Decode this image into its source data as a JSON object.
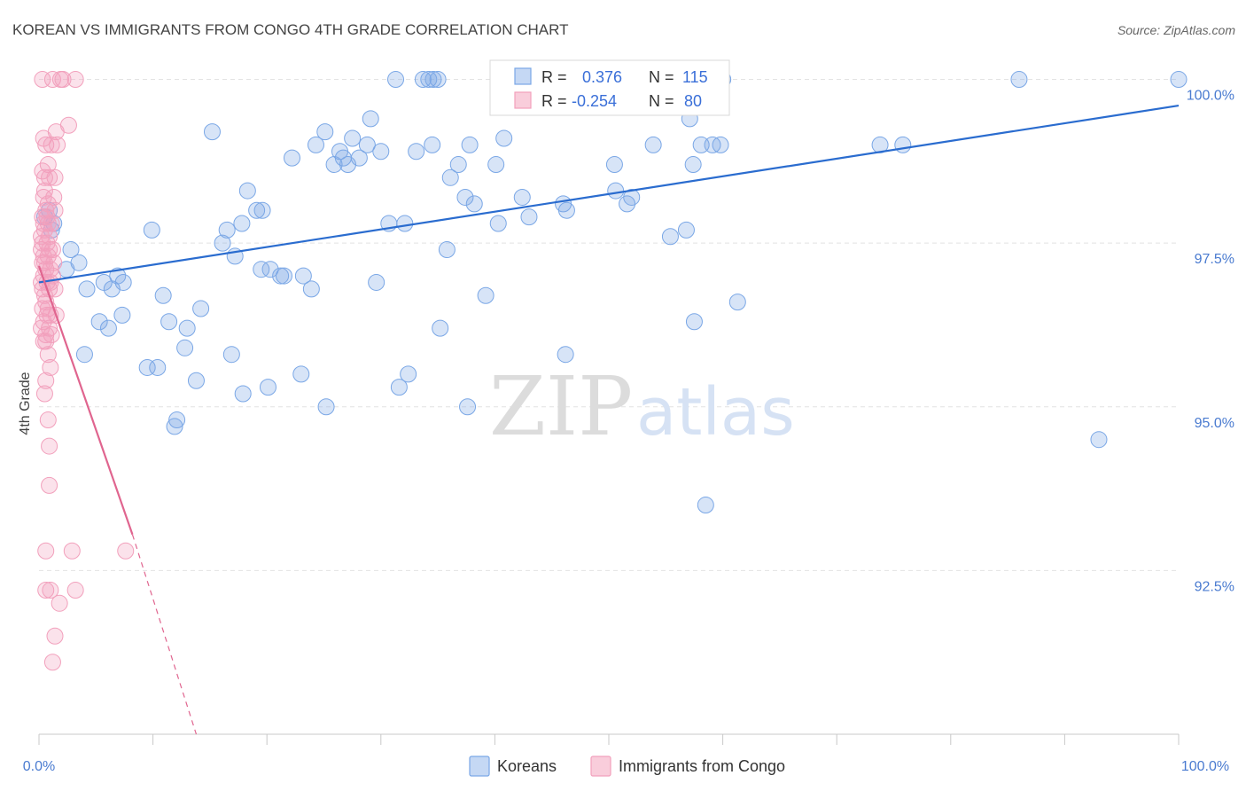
{
  "chart_data": {
    "type": "scatter",
    "title": "KOREAN VS IMMIGRANTS FROM CONGO 4TH GRADE CORRELATION CHART",
    "source": "Source: ZipAtlas.com",
    "ylabel": "4th Grade",
    "xlabel": "",
    "xlim": [
      0,
      100
    ],
    "ylim": [
      90.0,
      100.4
    ],
    "x_tick_labels": [
      "0.0%",
      "100.0%"
    ],
    "y_ticks": [
      {
        "value": 100.0,
        "label": "100.0%"
      },
      {
        "value": 97.5,
        "label": "97.5%"
      },
      {
        "value": 95.0,
        "label": "95.0%"
      },
      {
        "value": 92.5,
        "label": "92.5%"
      }
    ],
    "grid": true,
    "legend_position": "top-center",
    "watermark": {
      "zip": "ZIP",
      "atlas": "atlas"
    },
    "series": [
      {
        "name": "Koreans",
        "color": "#7aa7e6",
        "line_color": "#2a6ccf",
        "r_label": "R =",
        "r_value": "0.376",
        "n_label": "N =",
        "n_value": "115",
        "trend": {
          "x0": 0,
          "y0": 96.9,
          "x1": 100,
          "y1": 99.6
        },
        "points": [
          [
            0.5,
            97.9
          ],
          [
            1.1,
            97.7
          ],
          [
            0.9,
            98.0
          ],
          [
            1.3,
            97.8
          ],
          [
            2.8,
            97.4
          ],
          [
            2.4,
            97.1
          ],
          [
            3.5,
            97.2
          ],
          [
            4.2,
            96.8
          ],
          [
            5.7,
            96.9
          ],
          [
            6.4,
            96.8
          ],
          [
            7.4,
            96.9
          ],
          [
            6.9,
            97.0
          ],
          [
            5.3,
            96.3
          ],
          [
            6.1,
            96.2
          ],
          [
            7.3,
            96.4
          ],
          [
            4.0,
            95.8
          ],
          [
            9.9,
            97.7
          ],
          [
            10.9,
            96.7
          ],
          [
            11.4,
            96.3
          ],
          [
            13.0,
            96.2
          ],
          [
            12.8,
            95.9
          ],
          [
            14.2,
            96.5
          ],
          [
            9.5,
            95.6
          ],
          [
            10.4,
            95.6
          ],
          [
            13.8,
            95.4
          ],
          [
            12.1,
            94.8
          ],
          [
            11.9,
            94.7
          ],
          [
            15.2,
            99.2
          ],
          [
            16.1,
            97.5
          ],
          [
            16.5,
            97.7
          ],
          [
            17.2,
            97.3
          ],
          [
            16.9,
            95.8
          ],
          [
            17.8,
            97.8
          ],
          [
            18.3,
            98.3
          ],
          [
            19.1,
            98.0
          ],
          [
            19.6,
            98.0
          ],
          [
            19.5,
            97.1
          ],
          [
            20.3,
            97.1
          ],
          [
            20.1,
            95.3
          ],
          [
            21.2,
            97.0
          ],
          [
            21.5,
            97.0
          ],
          [
            22.2,
            98.8
          ],
          [
            23.2,
            97.0
          ],
          [
            23.9,
            96.8
          ],
          [
            23.0,
            95.5
          ],
          [
            24.3,
            99.0
          ],
          [
            25.1,
            99.2
          ],
          [
            25.9,
            98.7
          ],
          [
            26.4,
            98.9
          ],
          [
            26.7,
            98.8
          ],
          [
            27.1,
            98.7
          ],
          [
            27.5,
            99.1
          ],
          [
            25.2,
            95.0
          ],
          [
            28.1,
            98.8
          ],
          [
            28.8,
            99.0
          ],
          [
            29.1,
            99.4
          ],
          [
            29.6,
            96.9
          ],
          [
            30.0,
            98.9
          ],
          [
            30.7,
            97.8
          ],
          [
            31.6,
            95.3
          ],
          [
            32.1,
            97.8
          ],
          [
            32.4,
            95.5
          ],
          [
            33.1,
            98.9
          ],
          [
            31.3,
            100.0
          ],
          [
            33.7,
            100.0
          ],
          [
            34.2,
            100.0
          ],
          [
            35.0,
            100.0
          ],
          [
            34.5,
            99.0
          ],
          [
            36.1,
            98.5
          ],
          [
            35.8,
            97.4
          ],
          [
            35.2,
            96.2
          ],
          [
            36.8,
            98.7
          ],
          [
            37.4,
            98.2
          ],
          [
            38.2,
            98.1
          ],
          [
            37.8,
            99.0
          ],
          [
            40.1,
            98.7
          ],
          [
            40.8,
            99.1
          ],
          [
            40.3,
            97.8
          ],
          [
            40.5,
            100.0
          ],
          [
            39.2,
            96.7
          ],
          [
            42.4,
            98.2
          ],
          [
            43.0,
            97.9
          ],
          [
            45.1,
            100.0
          ],
          [
            46.0,
            98.1
          ],
          [
            46.3,
            98.0
          ],
          [
            47.2,
            100.0
          ],
          [
            50.3,
            100.0
          ],
          [
            50.5,
            98.7
          ],
          [
            50.6,
            98.3
          ],
          [
            51.6,
            98.1
          ],
          [
            52.0,
            98.2
          ],
          [
            52.9,
            100.0
          ],
          [
            53.9,
            99.0
          ],
          [
            54.2,
            100.0
          ],
          [
            55.4,
            97.6
          ],
          [
            56.8,
            97.7
          ],
          [
            57.1,
            99.4
          ],
          [
            57.4,
            98.7
          ],
          [
            58.1,
            99.0
          ],
          [
            59.1,
            99.0
          ],
          [
            57.5,
            96.3
          ],
          [
            60.0,
            100.0
          ],
          [
            61.3,
            96.6
          ],
          [
            46.2,
            95.8
          ],
          [
            58.5,
            93.5
          ],
          [
            73.8,
            99.0
          ],
          [
            75.8,
            99.0
          ],
          [
            86.0,
            100.0
          ],
          [
            93.0,
            94.5
          ],
          [
            100.0,
            100.0
          ],
          [
            34.6,
            100.0
          ],
          [
            37.6,
            95.0
          ],
          [
            60.0,
            100.0
          ],
          [
            59.8,
            99.0
          ],
          [
            17.9,
            95.2
          ]
        ]
      },
      {
        "name": "Immigrants from Congo",
        "color": "#f2a0bc",
        "line_color": "#e0658f",
        "r_label": "R =",
        "r_value": "-0.254",
        "n_label": "N =",
        "n_value": "80",
        "trend": {
          "x0": 0,
          "y0": 97.15,
          "x1": 8.2,
          "y1": 93.05
        },
        "trend_ext": {
          "x0": 8.2,
          "y0": 93.05,
          "x1": 13.8,
          "y1": 90.0
        },
        "points": [
          [
            0.3,
            100.0
          ],
          [
            1.2,
            100.0
          ],
          [
            1.9,
            100.0
          ],
          [
            2.1,
            100.0
          ],
          [
            3.2,
            100.0
          ],
          [
            2.6,
            99.3
          ],
          [
            1.5,
            99.2
          ],
          [
            0.6,
            99.0
          ],
          [
            1.1,
            99.0
          ],
          [
            1.6,
            99.0
          ],
          [
            0.8,
            98.7
          ],
          [
            0.5,
            98.5
          ],
          [
            0.9,
            98.5
          ],
          [
            1.4,
            98.5
          ],
          [
            0.4,
            98.2
          ],
          [
            1.3,
            98.2
          ],
          [
            0.6,
            98.0
          ],
          [
            1.4,
            98.0
          ],
          [
            0.3,
            97.9
          ],
          [
            0.8,
            97.8
          ],
          [
            1.1,
            97.8
          ],
          [
            0.5,
            97.7
          ],
          [
            0.9,
            97.6
          ],
          [
            0.3,
            97.5
          ],
          [
            0.7,
            97.5
          ],
          [
            1.2,
            97.4
          ],
          [
            0.4,
            97.3
          ],
          [
            0.8,
            97.3
          ],
          [
            1.3,
            97.2
          ],
          [
            0.3,
            97.2
          ],
          [
            0.6,
            97.1
          ],
          [
            1.0,
            97.1
          ],
          [
            0.4,
            97.0
          ],
          [
            0.2,
            96.9
          ],
          [
            0.7,
            96.9
          ],
          [
            0.9,
            96.8
          ],
          [
            1.4,
            96.8
          ],
          [
            0.5,
            96.7
          ],
          [
            0.3,
            96.5
          ],
          [
            0.8,
            96.5
          ],
          [
            1.0,
            96.4
          ],
          [
            1.5,
            96.4
          ],
          [
            0.4,
            96.3
          ],
          [
            0.9,
            96.2
          ],
          [
            0.2,
            96.2
          ],
          [
            0.6,
            96.1
          ],
          [
            1.1,
            96.1
          ],
          [
            0.4,
            96.0
          ],
          [
            0.8,
            95.8
          ],
          [
            1.0,
            95.6
          ],
          [
            0.6,
            95.4
          ],
          [
            0.8,
            94.8
          ],
          [
            0.9,
            94.4
          ],
          [
            0.9,
            93.8
          ],
          [
            0.6,
            92.8
          ],
          [
            2.9,
            92.8
          ],
          [
            7.6,
            92.8
          ],
          [
            0.6,
            92.2
          ],
          [
            1.0,
            92.2
          ],
          [
            3.2,
            92.2
          ],
          [
            1.8,
            92.0
          ],
          [
            1.4,
            91.5
          ],
          [
            1.2,
            91.1
          ],
          [
            0.2,
            97.6
          ],
          [
            0.3,
            98.6
          ],
          [
            0.4,
            99.1
          ],
          [
            0.5,
            97.2
          ],
          [
            0.6,
            96.6
          ],
          [
            0.7,
            97.9
          ],
          [
            0.3,
            96.8
          ],
          [
            0.9,
            97.4
          ],
          [
            0.5,
            98.3
          ],
          [
            1.2,
            97.0
          ],
          [
            0.2,
            97.4
          ],
          [
            0.6,
            96.0
          ],
          [
            0.8,
            98.1
          ],
          [
            1.0,
            96.9
          ],
          [
            0.4,
            97.8
          ],
          [
            0.7,
            96.4
          ],
          [
            0.5,
            95.2
          ]
        ]
      }
    ]
  }
}
